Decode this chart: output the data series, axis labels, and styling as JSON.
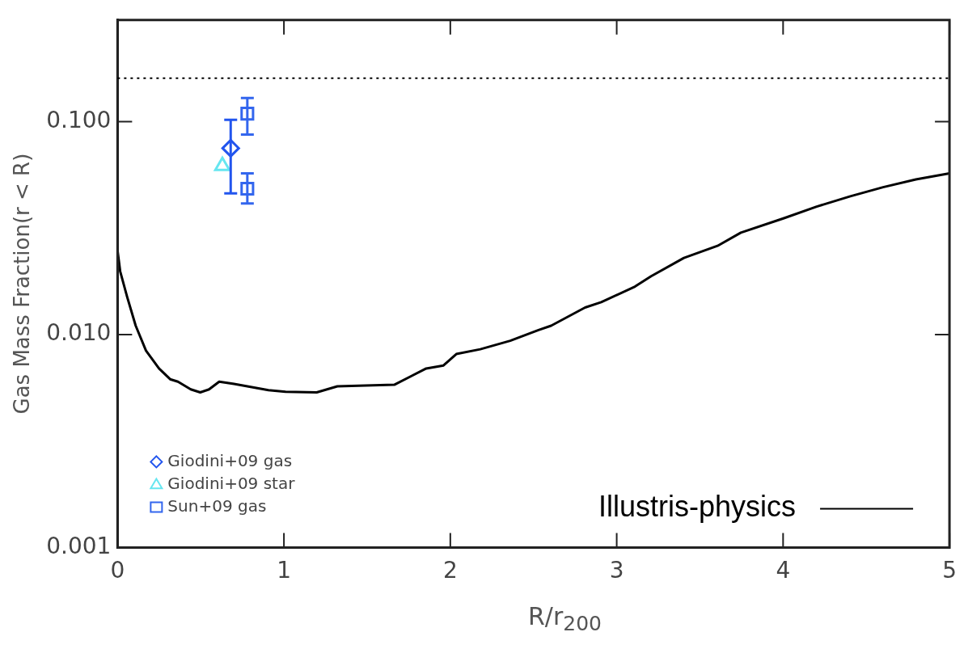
{
  "chart_data": {
    "type": "line",
    "xlabel": "R/r$_{200}$",
    "ylabel": "Gas Mass Fraction(r < R)",
    "log": "y",
    "xlim": [
      0,
      5
    ],
    "xticks": [
      0,
      1,
      2,
      3,
      4,
      5
    ],
    "ylim": [
      0.001,
      0.3
    ],
    "yticks": [
      {
        "value": 0.001,
        "label": "0.001"
      },
      {
        "value": 0.01,
        "label": "0.010"
      },
      {
        "value": 0.1,
        "label": "0.100"
      }
    ],
    "legend": "bottom left",
    "grid": false,
    "ref_lines": [
      {
        "axis": "y",
        "value": 0.16,
        "color": "#000000",
        "line_style": "dotted"
      }
    ],
    "series": [
      {
        "name": "Illustris-physics",
        "type": "line",
        "color": "#000000",
        "marker": "none",
        "line_style": "solid",
        "x": [
          0,
          0.016,
          0.057,
          0.109,
          0.171,
          0.249,
          0.316,
          0.363,
          0.44,
          0.497,
          0.55,
          0.611,
          0.7,
          0.907,
          1.01,
          1.197,
          1.321,
          1.663,
          1.855,
          1.959,
          2.036,
          2.18,
          2.36,
          2.53,
          2.606,
          2.81,
          2.907,
          3.11,
          3.207,
          3.404,
          3.606,
          3.746,
          4.005,
          4.202,
          4.404,
          4.601,
          4.798,
          5.0
        ],
        "values": [
          0.0248,
          0.0198,
          0.0151,
          0.011,
          0.0084,
          0.00693,
          0.00617,
          0.00601,
          0.00553,
          0.00535,
          0.00553,
          0.00601,
          0.00586,
          0.00548,
          0.00539,
          0.00535,
          0.00571,
          0.00581,
          0.00693,
          0.00716,
          0.0081,
          0.00853,
          0.00935,
          0.0105,
          0.011,
          0.0134,
          0.0142,
          0.0168,
          0.0188,
          0.0229,
          0.0261,
          0.0301,
          0.0352,
          0.0399,
          0.0446,
          0.0492,
          0.0535,
          0.0572
        ]
      },
      {
        "name": "Giodini+09 gas",
        "type": "scatter",
        "color": "#2255ee",
        "marker": "diamond",
        "x": [
          0.68
        ],
        "values": [
          0.075
        ],
        "errors": [
          [
            0.046,
            0.102
          ]
        ]
      },
      {
        "name": "Giodini+09 star",
        "type": "scatter",
        "color": "#66e6f0",
        "marker": "triangle",
        "x": [
          0.63
        ],
        "values": [
          0.062
        ]
      },
      {
        "name": "Sun+09 gas",
        "type": "scatter",
        "color": "#3366ee",
        "marker": "square",
        "x": [
          0.78,
          0.78
        ],
        "values": [
          0.109,
          0.0484
        ],
        "errors": [
          [
            0.087,
            0.129
          ],
          [
            0.0413,
            0.0572
          ]
        ]
      }
    ]
  }
}
